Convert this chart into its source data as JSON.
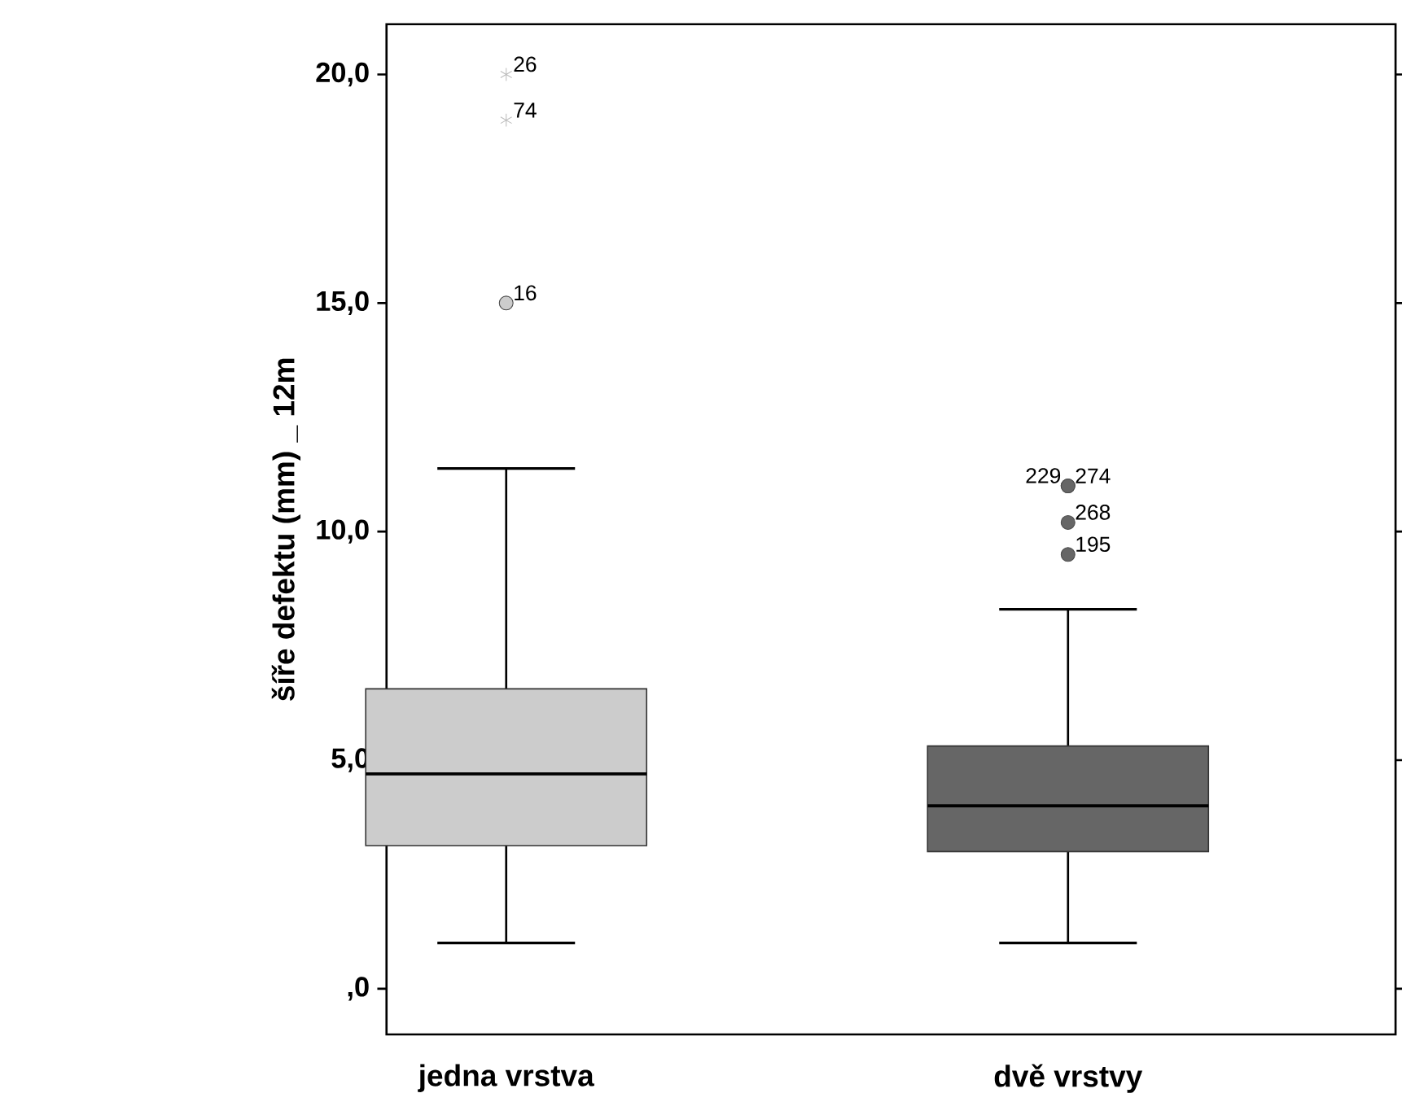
{
  "chart_data": {
    "type": "box",
    "ylabel": "šíře defektu (mm) _ 12m",
    "categories": [
      "jedna vrstva",
      "dvě vrstvy"
    ],
    "colors": [
      "#cccccc",
      "#666666"
    ],
    "boxes": [
      {
        "low": 1.0,
        "q1": 3.13,
        "median": 4.7,
        "q3": 6.56,
        "high": 11.38,
        "outliers": [
          15.0,
          19.0,
          20.0
        ]
      },
      {
        "low": 1.0,
        "q1": 3.0,
        "median": 4.0,
        "q3": 5.31,
        "high": 8.3,
        "outliers": [
          9.5,
          10.2,
          11.0,
          11.0
        ]
      }
    ],
    "ylim": [
      -1.0,
      21.1
    ],
    "yticks": [
      {
        "value": 0,
        "label": ",0"
      },
      {
        "value": 5,
        "label": "5,0"
      },
      {
        "value": 10,
        "label": "10,0"
      },
      {
        "value": 15,
        "label": "15,0"
      },
      {
        "value": 20,
        "label": "20,0"
      }
    ],
    "annotations": [
      "26",
      "74",
      "16",
      "229",
      "274",
      "268",
      "195"
    ]
  }
}
